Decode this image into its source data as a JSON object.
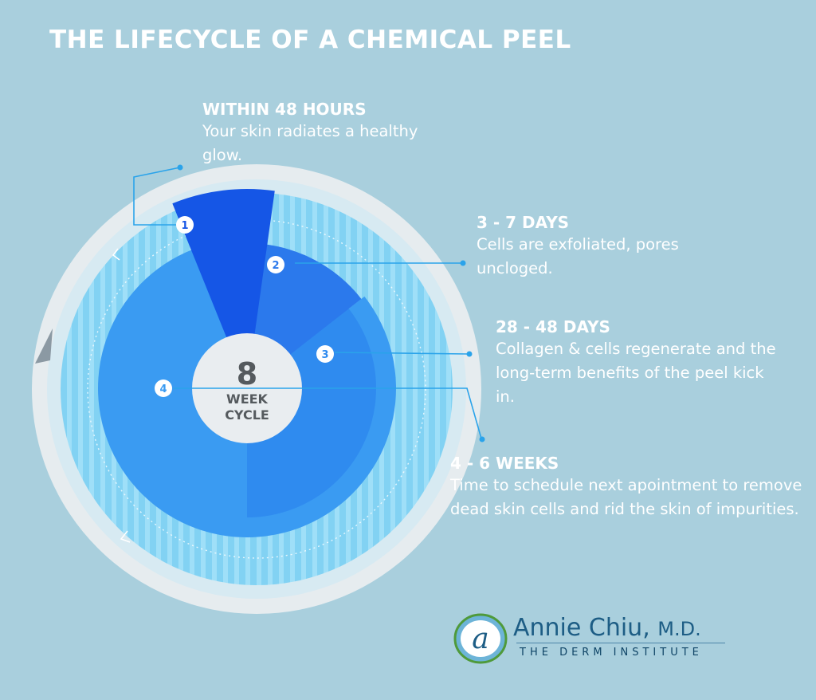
{
  "title": "THE LIFECYCLE OF A CHEMICAL PEEL",
  "center": {
    "number": "8",
    "line1": "WEEK",
    "line2": "CYCLE"
  },
  "stages": [
    {
      "badge": "1",
      "heading": "WITHIN 48 HOURS",
      "description": "Your skin radiates a healthy glow."
    },
    {
      "badge": "2",
      "heading": "3 - 7 DAYS",
      "description": "Cells are exfoliated, pores uncloged."
    },
    {
      "badge": "3",
      "heading": "28 - 48 DAYS",
      "description": "Collagen & cells regenerate and the long-term benefits of the peel kick in."
    },
    {
      "badge": "4",
      "heading": "4 - 6 WEEKS",
      "description": "Time to schedule next apointment to remove dead skin cells and rid the skin of impurities."
    }
  ],
  "logo": {
    "mark": "a",
    "name": "Annie Chiu,",
    "suffix": "M.D.",
    "subtitle": "THE DERM INSTITUTE"
  },
  "colors": {
    "background": "#a9cfdd",
    "ring": "#e6ecef",
    "inner_disc": "#7fd0f2",
    "segment_1": "#1556e6",
    "segment_2": "#2b79ec",
    "segment_3": "#2f8bef",
    "segment_4": "#3a9bf2",
    "connector": "#2aa3ea",
    "logo_text": "#1d5d85"
  }
}
